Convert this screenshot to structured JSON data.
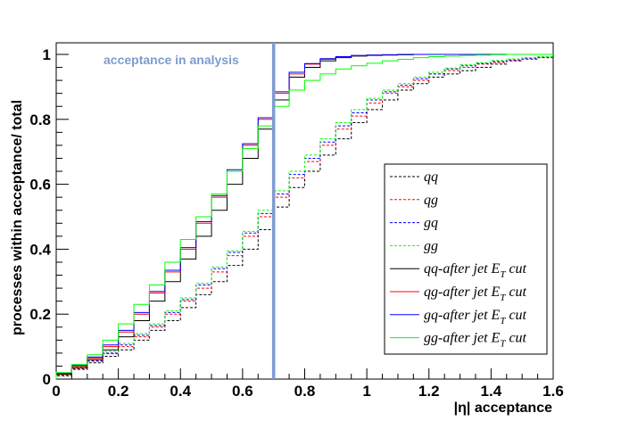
{
  "chart_data": {
    "type": "line",
    "title": "",
    "xlabel": "|η| acceptance",
    "ylabel": "processes within acceptance/ total",
    "xlim": [
      0,
      1.6
    ],
    "ylim": [
      0,
      1.0
    ],
    "xticks": [
      "0",
      "0.2",
      "0.4",
      "0.6",
      "0.8",
      "1",
      "1.2",
      "1.4",
      "1.6"
    ],
    "yticks": [
      "0",
      "0.2",
      "0.4",
      "0.6",
      "0.8",
      "1"
    ],
    "step_width": 0.05,
    "grid": false,
    "legend_position": "bottom-right",
    "annotation": {
      "text": "acceptance in analysis",
      "x": 0.7,
      "color": "#7d9bd0"
    },
    "x": [
      0,
      0.05,
      0.1,
      0.15,
      0.2,
      0.25,
      0.3,
      0.35,
      0.4,
      0.45,
      0.5,
      0.55,
      0.6,
      0.65,
      0.7,
      0.75,
      0.8,
      0.85,
      0.9,
      0.95,
      1.0,
      1.05,
      1.1,
      1.15,
      1.2,
      1.25,
      1.3,
      1.35,
      1.4,
      1.45,
      1.5,
      1.55,
      1.6
    ],
    "series": [
      {
        "name": "qq",
        "label_main": "qq",
        "label_sub": "",
        "label_tail": "",
        "color": "#000000",
        "dashed": true,
        "values": [
          0,
          0.01,
          0.03,
          0.05,
          0.07,
          0.09,
          0.12,
          0.15,
          0.18,
          0.22,
          0.26,
          0.3,
          0.35,
          0.4,
          0.46,
          0.53,
          0.59,
          0.64,
          0.69,
          0.74,
          0.79,
          0.83,
          0.86,
          0.89,
          0.91,
          0.93,
          0.94,
          0.95,
          0.96,
          0.97,
          0.98,
          0.985,
          0.99
        ]
      },
      {
        "name": "qg",
        "label_main": "qg",
        "label_sub": "",
        "label_tail": "",
        "color": "#ff0000",
        "dashed": true,
        "values": [
          0,
          0.012,
          0.033,
          0.055,
          0.078,
          0.1,
          0.13,
          0.16,
          0.2,
          0.24,
          0.28,
          0.33,
          0.38,
          0.44,
          0.5,
          0.56,
          0.62,
          0.67,
          0.72,
          0.77,
          0.81,
          0.85,
          0.88,
          0.9,
          0.92,
          0.94,
          0.95,
          0.96,
          0.97,
          0.975,
          0.98,
          0.985,
          0.99
        ]
      },
      {
        "name": "gq",
        "label_main": "gq",
        "label_sub": "",
        "label_tail": "",
        "color": "#0000ff",
        "dashed": true,
        "values": [
          0,
          0.013,
          0.035,
          0.057,
          0.08,
          0.105,
          0.135,
          0.165,
          0.205,
          0.245,
          0.29,
          0.34,
          0.39,
          0.45,
          0.51,
          0.57,
          0.63,
          0.68,
          0.73,
          0.78,
          0.82,
          0.86,
          0.885,
          0.905,
          0.925,
          0.94,
          0.955,
          0.965,
          0.972,
          0.978,
          0.983,
          0.988,
          0.992
        ]
      },
      {
        "name": "gg",
        "label_main": "gg",
        "label_sub": "",
        "label_tail": "",
        "color": "#00ff00",
        "dashed": true,
        "values": [
          0,
          0.014,
          0.037,
          0.06,
          0.085,
          0.11,
          0.14,
          0.17,
          0.21,
          0.25,
          0.295,
          0.345,
          0.395,
          0.455,
          0.52,
          0.58,
          0.64,
          0.69,
          0.74,
          0.79,
          0.83,
          0.865,
          0.89,
          0.91,
          0.93,
          0.945,
          0.958,
          0.968,
          0.975,
          0.981,
          0.986,
          0.99,
          0.993
        ]
      },
      {
        "name": "qq-after jet ET cut",
        "label_main": "qq-after jet E",
        "label_sub": "T",
        "label_tail": "cut",
        "color": "#000000",
        "dashed": false,
        "values": [
          0,
          0.015,
          0.035,
          0.06,
          0.09,
          0.13,
          0.18,
          0.24,
          0.3,
          0.37,
          0.44,
          0.52,
          0.6,
          0.68,
          0.77,
          0.86,
          0.93,
          0.96,
          0.98,
          0.99,
          0.995,
          0.997,
          0.998,
          0.999,
          1.0,
          1.0,
          1.0,
          1.0,
          1.0,
          1.0,
          1.0,
          1.0,
          1.0
        ]
      },
      {
        "name": "qg-after jet ET cut",
        "label_main": "qg-after jet E",
        "label_sub": "T",
        "label_tail": "cut",
        "color": "#ff0000",
        "dashed": false,
        "values": [
          0,
          0.017,
          0.04,
          0.065,
          0.1,
          0.145,
          0.2,
          0.265,
          0.33,
          0.4,
          0.48,
          0.56,
          0.64,
          0.72,
          0.8,
          0.88,
          0.94,
          0.97,
          0.985,
          0.992,
          0.996,
          0.998,
          0.999,
          1.0,
          1.0,
          1.0,
          1.0,
          1.0,
          1.0,
          1.0,
          1.0,
          1.0,
          1.0
        ]
      },
      {
        "name": "gq-after jet ET cut",
        "label_main": "gq-after jet E",
        "label_sub": "T",
        "label_tail": "cut",
        "color": "#0000ff",
        "dashed": false,
        "values": [
          0,
          0.018,
          0.042,
          0.068,
          0.105,
          0.15,
          0.205,
          0.27,
          0.335,
          0.405,
          0.485,
          0.565,
          0.645,
          0.725,
          0.805,
          0.885,
          0.945,
          0.972,
          0.987,
          0.993,
          0.997,
          0.998,
          0.999,
          1.0,
          1.0,
          1.0,
          1.0,
          1.0,
          1.0,
          1.0,
          1.0,
          1.0,
          1.0
        ]
      },
      {
        "name": "gg-after jet ET cut",
        "label_main": "gg-after jet E",
        "label_sub": "T",
        "label_tail": "cut",
        "color": "#00ff00",
        "dashed": false,
        "values": [
          0,
          0.02,
          0.045,
          0.075,
          0.12,
          0.17,
          0.23,
          0.29,
          0.36,
          0.43,
          0.5,
          0.57,
          0.64,
          0.71,
          0.78,
          0.84,
          0.89,
          0.92,
          0.94,
          0.955,
          0.965,
          0.973,
          0.98,
          0.985,
          0.99,
          0.993,
          0.995,
          0.997,
          0.998,
          0.999,
          1.0,
          1.0,
          1.0
        ]
      }
    ]
  }
}
